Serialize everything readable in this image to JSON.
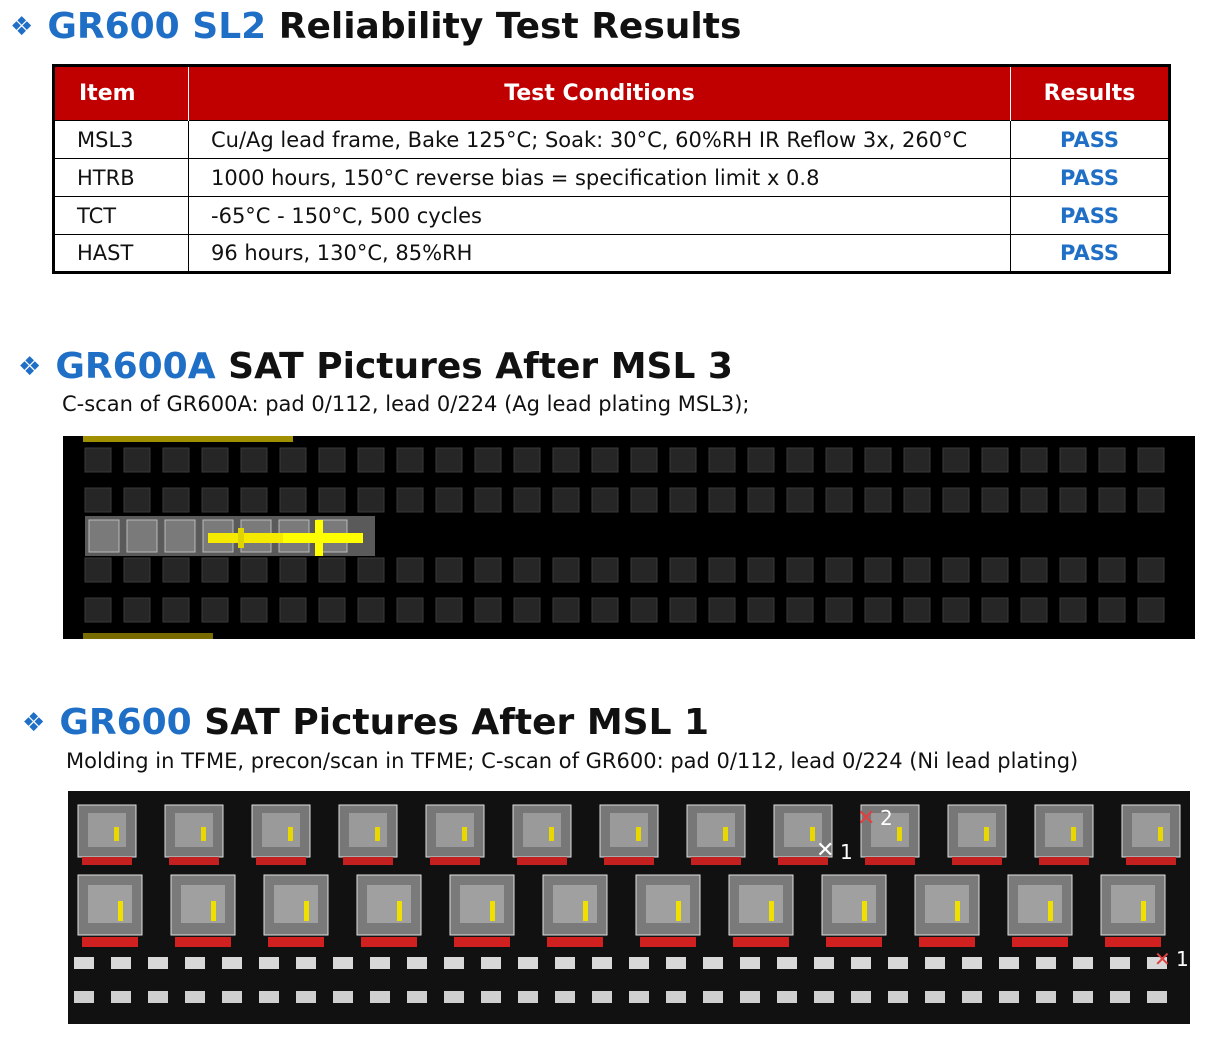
{
  "section1": {
    "bullet": "❖",
    "title_blue": "GR600 SL2",
    "title_rest": "Reliability Test Results"
  },
  "table": {
    "headers": [
      "Item",
      "Test Conditions",
      "Results"
    ],
    "rows": [
      {
        "item": "MSL3",
        "conditions": "Cu/Ag lead frame, Bake 125°C; Soak: 30°C, 60%RH IR Reflow 3x, 260°C",
        "result": "PASS"
      },
      {
        "item": "HTRB",
        "conditions": "1000 hours, 150°C reverse bias = specification limit x 0.8",
        "result": "PASS"
      },
      {
        "item": "TCT",
        "conditions": "-65°C - 150°C, 500 cycles",
        "result": "PASS"
      },
      {
        "item": "HAST",
        "conditions": "96 hours, 130°C, 85%RH",
        "result": "PASS"
      }
    ]
  },
  "section2": {
    "bullet": "❖",
    "title_blue": "GR600A",
    "title_rest": "SAT Pictures After MSL 3",
    "subtitle": "C-scan of GR600A: pad 0/112, lead 0/224 (Ag lead plating MSL3);"
  },
  "section3": {
    "bullet": "❖",
    "title_blue": "GR600",
    "title_rest": "SAT Pictures After MSL 1",
    "subtitle": "Molding in TFME, precon/scan in TFME; C-scan of GR600: pad 0/112, lead 0/224 (Ni lead plating)",
    "markers": [
      "1",
      "2",
      "1"
    ]
  },
  "colors": {
    "accent_blue": "#1f6fc6",
    "header_red": "#c00000"
  }
}
